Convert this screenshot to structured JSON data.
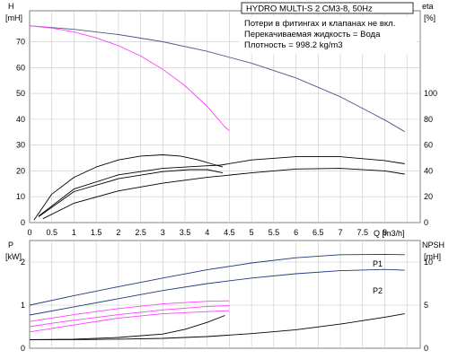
{
  "colors": {
    "head": "#4a5a86",
    "efficiency": "#ff40ff",
    "curve": "#000000",
    "grid": "#c8c8c8",
    "p1": "#1f3a7a",
    "p2": "#1f3a7a"
  },
  "header": {
    "title": "HYDRO MULTI-S 2 CM3-8, 50Hz",
    "notes": [
      "Потери в фитингах и клапанах не вкл.",
      "Перекачиваемая жидкость = Вода",
      "Плотность = 998.2 kg/m3"
    ]
  },
  "chart_data": [
    {
      "type": "line",
      "x_label": "Q [m3/h]",
      "x_ticks": [
        "0",
        "0.5",
        "1",
        "1.5",
        "2",
        "2.5",
        "3",
        "3.5",
        "4",
        "4.5",
        "5",
        "5.5",
        "6",
        "6.5",
        "7",
        "7.5",
        "8"
      ],
      "xlim": [
        0,
        8.8
      ],
      "y_left": {
        "label": "H",
        "unit": "[mH]",
        "ticks": [
          "0",
          "10",
          "20",
          "30",
          "40",
          "50",
          "60",
          "70"
        ],
        "lim": [
          0,
          82
        ]
      },
      "y_right": {
        "label": "eta",
        "unit": "[%]",
        "ticks": [
          "0",
          "20",
          "40",
          "60",
          "80",
          "100"
        ],
        "lim": [
          0,
          164
        ]
      },
      "series": [
        {
          "role": "head",
          "axis": "left",
          "points": [
            [
              0,
              76.2
            ],
            [
              1,
              74.8
            ],
            [
              2,
              72.8
            ],
            [
              3,
              70
            ],
            [
              4,
              66.3
            ],
            [
              5,
              61.7
            ],
            [
              6,
              56
            ],
            [
              7,
              48.7
            ],
            [
              8,
              39.7
            ],
            [
              8.45,
              35.2
            ]
          ]
        },
        {
          "role": "head",
          "axis": "left",
          "color": "efficiency",
          "points": [
            [
              0,
              76.2
            ],
            [
              0.5,
              75.3
            ],
            [
              1,
              73.8
            ],
            [
              1.5,
              71.5
            ],
            [
              2,
              68.5
            ],
            [
              2.5,
              64.5
            ],
            [
              3,
              59.3
            ],
            [
              3.5,
              53
            ],
            [
              4,
              45
            ],
            [
              4.4,
              37
            ],
            [
              4.5,
              35.6
            ]
          ]
        },
        {
          "role": "efficiency",
          "axis": "right",
          "points": [
            [
              0.1,
              2
            ],
            [
              0.5,
              22
            ],
            [
              1,
              35
            ],
            [
              1.5,
              43
            ],
            [
              2,
              48.5
            ],
            [
              2.5,
              51.5
            ],
            [
              3,
              52.5
            ],
            [
              3.4,
              51.5
            ],
            [
              3.8,
              48.5
            ],
            [
              4.2,
              44.5
            ],
            [
              4.35,
              43
            ]
          ]
        },
        {
          "role": "efficiency",
          "axis": "right",
          "points": [
            [
              0.2,
              5
            ],
            [
              1,
              26
            ],
            [
              2,
              37
            ],
            [
              3,
              42
            ],
            [
              4,
              44
            ],
            [
              4.3,
              44.5
            ],
            [
              5,
              48.5
            ],
            [
              6,
              51
            ],
            [
              7,
              51
            ],
            [
              8,
              48
            ],
            [
              8.45,
              45.5
            ]
          ]
        },
        {
          "role": "efficiency",
          "axis": "right",
          "points": [
            [
              0.2,
              4.5
            ],
            [
              1,
              24
            ],
            [
              2,
              34
            ],
            [
              3,
              39.5
            ],
            [
              3.6,
              41
            ],
            [
              4,
              41
            ],
            [
              4.35,
              38.5
            ]
          ]
        },
        {
          "role": "efficiency",
          "axis": "right",
          "points": [
            [
              0.3,
              3
            ],
            [
              1,
              15
            ],
            [
              2,
              24.5
            ],
            [
              3,
              30.5
            ],
            [
              4,
              35
            ],
            [
              5,
              38.5
            ],
            [
              6,
              41.5
            ],
            [
              7,
              42
            ],
            [
              8,
              40
            ],
            [
              8.45,
              37.5
            ]
          ]
        }
      ]
    },
    {
      "type": "line",
      "xlim": [
        0,
        8.8
      ],
      "y_left": {
        "label": "P",
        "unit": "[kW]",
        "ticks": [
          "0",
          "1",
          "2"
        ],
        "lim": [
          0,
          2.5
        ]
      },
      "y_right": {
        "label": "NPSH",
        "unit": "[mH]",
        "ticks": [
          "0",
          "5",
          "10"
        ],
        "lim": [
          0,
          12.5
        ]
      },
      "series": [
        {
          "name": "P1",
          "axis": "left",
          "color": "p1",
          "points": [
            [
              0,
              1.0
            ],
            [
              1,
              1.22
            ],
            [
              2,
              1.43
            ],
            [
              3,
              1.63
            ],
            [
              4,
              1.82
            ],
            [
              5,
              1.98
            ],
            [
              6,
              2.1
            ],
            [
              7,
              2.17
            ],
            [
              8,
              2.18
            ],
            [
              8.45,
              2.17
            ]
          ]
        },
        {
          "name": "P2",
          "axis": "left",
          "color": "p2",
          "points": [
            [
              0,
              0.77
            ],
            [
              1,
              0.96
            ],
            [
              2,
              1.15
            ],
            [
              3,
              1.34
            ],
            [
              4,
              1.5
            ],
            [
              5,
              1.63
            ],
            [
              6,
              1.73
            ],
            [
              7,
              1.8
            ],
            [
              8,
              1.83
            ],
            [
              8.45,
              1.81
            ]
          ]
        },
        {
          "axis": "left",
          "color": "efficiency",
          "points": [
            [
              0,
              0.62
            ],
            [
              0.5,
              0.7
            ],
            [
              1,
              0.78
            ],
            [
              2,
              0.92
            ],
            [
              3,
              1.03
            ],
            [
              4,
              1.09
            ],
            [
              4.5,
              1.1
            ]
          ]
        },
        {
          "axis": "left",
          "color": "efficiency",
          "points": [
            [
              0,
              0.5
            ],
            [
              0.5,
              0.58
            ],
            [
              1,
              0.65
            ],
            [
              2,
              0.78
            ],
            [
              3,
              0.89
            ],
            [
              4,
              0.97
            ],
            [
              4.5,
              0.99
            ]
          ]
        },
        {
          "axis": "left",
          "color": "efficiency",
          "points": [
            [
              0,
              0.38
            ],
            [
              0.5,
              0.46
            ],
            [
              1,
              0.54
            ],
            [
              2,
              0.7
            ],
            [
              3,
              0.8
            ],
            [
              4,
              0.85
            ],
            [
              4.5,
              0.87
            ]
          ]
        },
        {
          "axis": "right",
          "points": [
            [
              0,
              1.0
            ],
            [
              1,
              1.05
            ],
            [
              2,
              1.25
            ],
            [
              3,
              1.65
            ],
            [
              3.5,
              2.2
            ],
            [
              4,
              3.0
            ],
            [
              4.4,
              3.8
            ]
          ]
        },
        {
          "axis": "right",
          "points": [
            [
              0,
              1.0
            ],
            [
              1,
              1.0
            ],
            [
              2,
              1.05
            ],
            [
              3,
              1.15
            ],
            [
              4,
              1.35
            ],
            [
              5,
              1.7
            ],
            [
              6,
              2.15
            ],
            [
              7,
              2.8
            ],
            [
              8,
              3.6
            ],
            [
              8.45,
              4.0
            ]
          ]
        }
      ]
    }
  ]
}
